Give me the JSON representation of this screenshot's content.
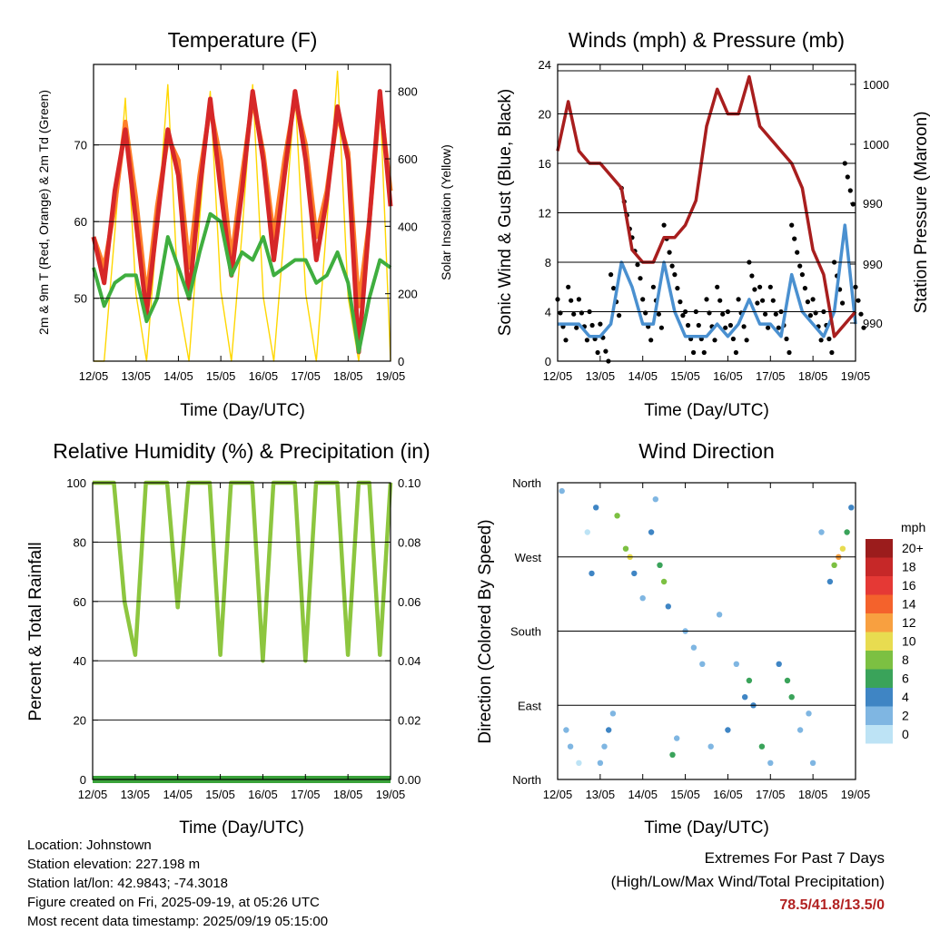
{
  "colors": {
    "temp2m": "#d62728",
    "temp9m": "#ff7f2a",
    "dewpoint": "#3fae3f",
    "solar": "#ffd700",
    "gust": "#000000",
    "wind": "#4a90d0",
    "pressure": "#a81e1e",
    "rh": "#8dc63f",
    "rain": "#3aa33a",
    "grid": "#000000"
  },
  "x_ticks": [
    "12/05",
    "13/05",
    "14/05",
    "15/05",
    "16/05",
    "17/05",
    "18/05",
    "19/05"
  ],
  "panels": {
    "temperature": {
      "title": "Temperature (F)",
      "xlabel": "Time (Day/UTC)",
      "ylabel_left": "2m & 9m T (Red, Orange) & 2m Td (Green)",
      "ylabel_right": "Solar Insolation (Yellow)",
      "y_ticks": [
        "50",
        "60",
        "70"
      ],
      "y2_ticks": [
        "0",
        "200",
        "400",
        "600",
        "800"
      ]
    },
    "winds": {
      "title": "Winds (mph) & Pressure (mb)",
      "xlabel": "Time (Day/UTC)",
      "ylabel_left": "Sonic Wind & Gust (Blue, Black)",
      "ylabel_right": "Station Pressure (Maroon)",
      "y_ticks": [
        "0",
        "4",
        "8",
        "12",
        "16",
        "20",
        "24"
      ],
      "y2_ticks": [
        "990",
        "990",
        "990",
        "1000",
        "1000"
      ]
    },
    "humidity": {
      "title": "Relative Humidity (%) & Precipitation (in)",
      "xlabel": "Time (Day/UTC)",
      "ylabel_left": "Percent & Total Rainfall",
      "y_ticks": [
        "0",
        "20",
        "40",
        "60",
        "80",
        "100"
      ],
      "y2_ticks": [
        "0.00",
        "0.02",
        "0.04",
        "0.06",
        "0.08",
        "0.10"
      ]
    },
    "direction": {
      "title": "Wind Direction",
      "xlabel": "Time (Day/UTC)",
      "ylabel_left": "Direction (Colored By Speed)",
      "y_ticks": [
        "North",
        "East",
        "South",
        "West",
        "North"
      ],
      "legend_unit": "mph",
      "legend_labels": [
        "20+",
        "18",
        "16",
        "14",
        "12",
        "10",
        "8",
        "6",
        "4",
        "2",
        "0"
      ],
      "legend_colors": [
        "#9b1c1c",
        "#c62828",
        "#e53935",
        "#f4622c",
        "#f8a040",
        "#e8dc50",
        "#7cc042",
        "#3aa35a",
        "#3f85c4",
        "#7fb6e2",
        "#bde3f5"
      ]
    }
  },
  "chart_data": [
    {
      "type": "line",
      "title": "Temperature (F)",
      "xlabel": "Time (Day/UTC)",
      "ylabel": "2m & 9m T (Red, Orange) & 2m Td (Green)",
      "y2label": "Solar Insolation (Yellow)",
      "x": [
        0,
        0.25,
        0.5,
        0.75,
        1,
        1.25,
        1.5,
        1.75,
        2,
        2.25,
        2.5,
        2.75,
        3,
        3.25,
        3.5,
        3.75,
        4,
        4.25,
        4.5,
        4.75,
        5,
        5.25,
        5.5,
        5.75,
        6,
        6.25,
        6.5,
        6.75,
        7
      ],
      "xlim": [
        0,
        7
      ],
      "ylim": [
        41.8,
        80.5
      ],
      "y2lim": [
        0,
        880
      ],
      "series": [
        {
          "name": "2m T",
          "axis": "left",
          "values": [
            58,
            52,
            64,
            72,
            60,
            48,
            60,
            72,
            66,
            50,
            64,
            76,
            64,
            53,
            64,
            77,
            68,
            55,
            66,
            77,
            68,
            55,
            63,
            75,
            68,
            43,
            60,
            77,
            62
          ]
        },
        {
          "name": "9m T",
          "axis": "left",
          "values": [
            58,
            54,
            62,
            73,
            63,
            50,
            62,
            71,
            68,
            54,
            66,
            75,
            68,
            55,
            66,
            76,
            69,
            58,
            68,
            76,
            70,
            58,
            64,
            74,
            69,
            49,
            60,
            76,
            64
          ]
        },
        {
          "name": "2m Td",
          "axis": "left",
          "values": [
            54,
            49,
            52,
            53,
            53,
            47,
            50,
            58,
            54,
            50,
            56,
            61,
            60,
            53,
            56,
            55,
            58,
            53,
            54,
            55,
            55,
            52,
            53,
            56,
            52,
            43,
            50,
            55,
            54
          ]
        },
        {
          "name": "Solar Insolation",
          "axis": "right",
          "values": [
            0,
            0,
            380,
            780,
            200,
            0,
            400,
            820,
            180,
            0,
            420,
            800,
            210,
            0,
            380,
            820,
            190,
            0,
            390,
            800,
            200,
            0,
            410,
            860,
            190,
            0,
            380,
            790,
            0
          ]
        }
      ]
    },
    {
      "type": "line",
      "title": "Winds (mph) & Pressure (mb)",
      "xlabel": "Time (Day/UTC)",
      "ylabel": "Sonic Wind & Gust (Blue, Black)",
      "y2label": "Station Pressure (Maroon)",
      "x": [
        0,
        0.25,
        0.5,
        0.75,
        1,
        1.25,
        1.5,
        1.75,
        2,
        2.25,
        2.5,
        2.75,
        3,
        3.25,
        3.5,
        3.75,
        4,
        4.25,
        4.5,
        4.75,
        5,
        5.25,
        5.5,
        5.75,
        6,
        6.25,
        6.5,
        6.75,
        7
      ],
      "xlim": [
        0,
        7
      ],
      "ylim": [
        0,
        24
      ],
      "series": [
        {
          "name": "Gust",
          "values": [
            5,
            6,
            5,
            4,
            3,
            7,
            14,
            10,
            5,
            6,
            11,
            7,
            4,
            4,
            5,
            6,
            4,
            5,
            8,
            6,
            6,
            4,
            11,
            7,
            5,
            4,
            8,
            16,
            6
          ]
        },
        {
          "name": "Wind",
          "values": [
            3,
            3,
            3,
            2,
            2,
            3,
            8,
            6,
            3,
            3,
            8,
            4,
            2,
            2,
            2,
            3,
            2,
            3,
            5,
            3,
            3,
            2,
            7,
            4,
            3,
            2,
            4,
            11,
            3
          ]
        },
        {
          "name": "Station Pressure",
          "values": [
            17,
            21,
            17,
            16,
            16,
            15,
            14,
            9,
            8,
            8,
            10,
            10,
            11,
            13,
            19,
            22,
            20,
            20,
            23,
            19,
            18,
            17,
            16,
            14,
            9,
            7,
            2,
            3,
            4
          ]
        }
      ]
    },
    {
      "type": "line",
      "title": "Relative Humidity (%) & Precipitation (in)",
      "xlabel": "Time (Day/UTC)",
      "ylabel": "Percent & Total Rainfall",
      "x": [
        0,
        0.25,
        0.5,
        0.75,
        1,
        1.25,
        1.5,
        1.75,
        2,
        2.25,
        2.5,
        2.75,
        3,
        3.25,
        3.5,
        3.75,
        4,
        4.25,
        4.5,
        4.75,
        5,
        5.25,
        5.5,
        5.75,
        6,
        6.25,
        6.5,
        6.75,
        7
      ],
      "xlim": [
        0,
        7
      ],
      "ylim": [
        0,
        100
      ],
      "y2lim": [
        0,
        0.1
      ],
      "series": [
        {
          "name": "Relative Humidity",
          "axis": "left",
          "values": [
            100,
            100,
            100,
            60,
            42,
            100,
            100,
            100,
            58,
            100,
            100,
            100,
            42,
            100,
            100,
            100,
            40,
            100,
            100,
            100,
            40,
            100,
            100,
            100,
            42,
            100,
            100,
            42,
            100
          ]
        },
        {
          "name": "Total Precipitation",
          "axis": "right",
          "values": [
            0,
            0,
            0,
            0,
            0,
            0,
            0,
            0,
            0,
            0,
            0,
            0,
            0,
            0,
            0,
            0,
            0,
            0,
            0,
            0,
            0,
            0,
            0,
            0,
            0,
            0,
            0,
            0,
            0
          ]
        }
      ]
    },
    {
      "type": "scatter",
      "title": "Wind Direction",
      "xlabel": "Time (Day/UTC)",
      "ylabel": "Direction (Colored By Speed)",
      "colorbar_label": "mph",
      "xlim": [
        0,
        7
      ],
      "ylim": [
        0,
        360
      ],
      "series": [
        {
          "name": "Wind Direction",
          "points": [
            [
              0.1,
              350,
              2
            ],
            [
              0.2,
              60,
              3
            ],
            [
              0.3,
              40,
              2
            ],
            [
              0.5,
              20,
              1
            ],
            [
              0.7,
              300,
              1
            ],
            [
              0.8,
              250,
              4
            ],
            [
              0.9,
              330,
              5
            ],
            [
              1.0,
              20,
              2
            ],
            [
              1.1,
              40,
              3
            ],
            [
              1.2,
              60,
              4
            ],
            [
              1.3,
              80,
              3
            ],
            [
              1.4,
              320,
              8
            ],
            [
              1.6,
              280,
              9
            ],
            [
              1.7,
              270,
              10
            ],
            [
              1.8,
              250,
              5
            ],
            [
              2.0,
              220,
              3
            ],
            [
              2.2,
              300,
              4
            ],
            [
              2.3,
              340,
              3
            ],
            [
              2.4,
              260,
              6
            ],
            [
              2.5,
              240,
              8
            ],
            [
              2.6,
              210,
              5
            ],
            [
              2.7,
              30,
              7
            ],
            [
              2.8,
              50,
              3
            ],
            [
              3.0,
              180,
              2
            ],
            [
              3.2,
              160,
              3
            ],
            [
              3.4,
              140,
              2
            ],
            [
              3.6,
              40,
              3
            ],
            [
              3.8,
              200,
              2
            ],
            [
              4.0,
              60,
              4
            ],
            [
              4.2,
              140,
              3
            ],
            [
              4.4,
              100,
              5
            ],
            [
              4.5,
              120,
              7
            ],
            [
              4.6,
              90,
              4
            ],
            [
              4.8,
              40,
              6
            ],
            [
              5.0,
              20,
              3
            ],
            [
              5.2,
              140,
              4
            ],
            [
              5.4,
              120,
              6
            ],
            [
              5.5,
              100,
              7
            ],
            [
              5.7,
              60,
              3
            ],
            [
              5.9,
              80,
              2
            ],
            [
              6.0,
              20,
              2
            ],
            [
              6.2,
              300,
              2
            ],
            [
              6.4,
              240,
              5
            ],
            [
              6.5,
              260,
              9
            ],
            [
              6.6,
              270,
              12
            ],
            [
              6.7,
              280,
              11
            ],
            [
              6.8,
              300,
              6
            ],
            [
              6.9,
              330,
              4
            ]
          ]
        }
      ]
    }
  ],
  "info": {
    "location": "Location: Johnstown",
    "elevation": "Station elevation: 227.198 m",
    "latlon": "Station lat/lon: 42.9843; -74.3018",
    "created": "Figure created on Fri, 2025-09-19, at 05:26 UTC",
    "latest": "Most recent data timestamp: 2025/09/19 05:15:00"
  },
  "extremes": {
    "title": "Extremes For Past 7 Days",
    "subtitle": "(High/Low/Max Wind/Total Precipitation)",
    "values": "78.5/41.8/13.5/0"
  }
}
